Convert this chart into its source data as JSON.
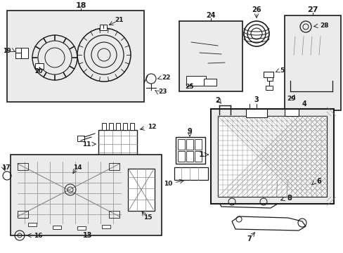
{
  "bg_color": "#ffffff",
  "fig_width": 4.89,
  "fig_height": 3.6,
  "dpi": 100,
  "dark": "#1a1a1a",
  "gray": "#888888",
  "fill_gray": "#e0e0e0",
  "light_fill": "#ebebeb"
}
